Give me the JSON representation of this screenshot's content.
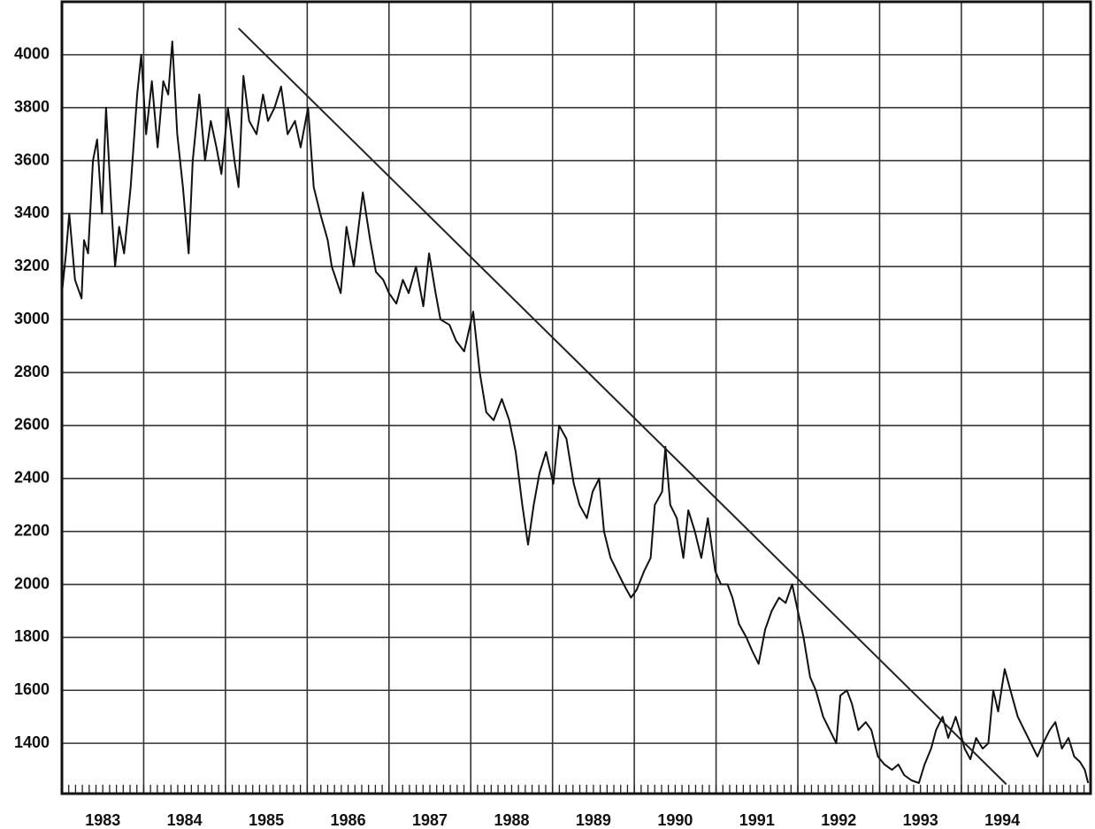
{
  "chart_data": {
    "type": "line",
    "x": [
      1983.0,
      1983.05,
      1983.09,
      1983.16,
      1983.24,
      1983.27,
      1983.32,
      1983.38,
      1983.43,
      1983.49,
      1983.54,
      1983.6,
      1983.65,
      1983.7,
      1983.76,
      1983.84,
      1983.92,
      1983.97,
      1984.03,
      1984.1,
      1984.17,
      1984.24,
      1984.3,
      1984.35,
      1984.41,
      1984.48,
      1984.55,
      1984.6,
      1984.68,
      1984.75,
      1984.82,
      1984.89,
      1984.95,
      1985.03,
      1985.11,
      1985.16,
      1985.22,
      1985.29,
      1985.38,
      1985.46,
      1985.52,
      1985.6,
      1985.68,
      1985.76,
      1985.85,
      1985.92,
      1986.01,
      1986.08,
      1986.16,
      1986.25,
      1986.3,
      1986.41,
      1986.48,
      1986.57,
      1986.68,
      1986.77,
      1986.84,
      1986.93,
      1987.0,
      1987.09,
      1987.17,
      1987.24,
      1987.33,
      1987.42,
      1987.49,
      1987.57,
      1987.63,
      1987.74,
      1987.82,
      1987.92,
      1988.03,
      1988.11,
      1988.19,
      1988.28,
      1988.38,
      1988.47,
      1988.55,
      1988.63,
      1988.7,
      1988.77,
      1988.84,
      1988.92,
      1989.01,
      1989.08,
      1989.17,
      1989.26,
      1989.33,
      1989.42,
      1989.49,
      1989.57,
      1989.63,
      1989.71,
      1989.79,
      1989.87,
      1989.96,
      1990.03,
      1990.12,
      1990.2,
      1990.25,
      1990.34,
      1990.38,
      1990.44,
      1990.52,
      1990.6,
      1990.66,
      1990.74,
      1990.82,
      1990.9,
      1990.99,
      1991.06,
      1991.14,
      1991.2,
      1991.28,
      1991.37,
      1991.44,
      1991.52,
      1991.6,
      1991.68,
      1991.77,
      1991.85,
      1991.93,
      1992.0,
      1992.07,
      1992.15,
      1992.22,
      1992.31,
      1992.39,
      1992.47,
      1992.52,
      1992.6,
      1992.66,
      1992.74,
      1992.83,
      1992.9,
      1992.98,
      1993.06,
      1993.15,
      1993.23,
      1993.3,
      1993.39,
      1993.48,
      1993.55,
      1993.63,
      1993.69,
      1993.77,
      1993.84,
      1993.93,
      1993.98,
      1994.04,
      1994.11,
      1994.18,
      1994.26,
      1994.33,
      1994.39,
      1994.45,
      1994.53,
      1994.6,
      1994.69,
      1994.77,
      1994.85,
      1994.93,
      1995.0,
      1995.08,
      1995.15,
      1995.23,
      1995.31,
      1995.38,
      1995.45,
      1995.51,
      1995.55
    ],
    "values": [
      3100,
      3250,
      3400,
      3150,
      3080,
      3300,
      3250,
      3600,
      3680,
      3400,
      3800,
      3450,
      3200,
      3350,
      3250,
      3500,
      3850,
      4000,
      3700,
      3900,
      3650,
      3900,
      3850,
      4050,
      3700,
      3500,
      3250,
      3600,
      3850,
      3600,
      3750,
      3650,
      3550,
      3800,
      3600,
      3500,
      3920,
      3750,
      3700,
      3850,
      3750,
      3800,
      3880,
      3700,
      3750,
      3650,
      3800,
      3500,
      3400,
      3300,
      3200,
      3100,
      3350,
      3200,
      3480,
      3300,
      3180,
      3150,
      3100,
      3060,
      3150,
      3100,
      3200,
      3050,
      3250,
      3100,
      3000,
      2980,
      2920,
      2880,
      3030,
      2800,
      2650,
      2620,
      2700,
      2620,
      2500,
      2300,
      2150,
      2300,
      2420,
      2500,
      2380,
      2600,
      2550,
      2380,
      2300,
      2250,
      2350,
      2400,
      2200,
      2100,
      2050,
      2000,
      1950,
      1980,
      2050,
      2100,
      2300,
      2350,
      2520,
      2300,
      2250,
      2100,
      2280,
      2200,
      2100,
      2250,
      2050,
      2000,
      2000,
      1950,
      1850,
      1800,
      1750,
      1700,
      1830,
      1900,
      1950,
      1930,
      2000,
      1900,
      1800,
      1650,
      1600,
      1500,
      1450,
      1400,
      1580,
      1600,
      1550,
      1450,
      1480,
      1450,
      1350,
      1320,
      1300,
      1320,
      1280,
      1260,
      1250,
      1320,
      1380,
      1450,
      1500,
      1420,
      1500,
      1450,
      1380,
      1340,
      1420,
      1380,
      1400,
      1600,
      1520,
      1680,
      1600,
      1500,
      1450,
      1400,
      1350,
      1400,
      1450,
      1480,
      1380,
      1420,
      1350,
      1330,
      1300,
      1250
    ],
    "color": "#111111",
    "xlim": [
      1983,
      1995.58
    ],
    "xticks": [
      {
        "value": 1983.5,
        "label": "1983"
      },
      {
        "value": 1984.5,
        "label": "1984"
      },
      {
        "value": 1985.5,
        "label": "1985"
      },
      {
        "value": 1986.5,
        "label": "1986"
      },
      {
        "value": 1987.5,
        "label": "1987"
      },
      {
        "value": 1988.5,
        "label": "1988"
      },
      {
        "value": 1989.5,
        "label": "1989"
      },
      {
        "value": 1990.5,
        "label": "1990"
      },
      {
        "value": 1991.5,
        "label": "1991"
      },
      {
        "value": 1992.5,
        "label": "1992"
      },
      {
        "value": 1993.5,
        "label": "1993"
      },
      {
        "value": 1994.5,
        "label": "1994"
      }
    ],
    "xgrid": [
      1984,
      1985,
      1986,
      1987,
      1988,
      1989,
      1990,
      1991,
      1992,
      1993,
      1994,
      1995
    ],
    "ylim": [
      1210,
      4200
    ],
    "yticks": [
      1400,
      1600,
      1800,
      2000,
      2200,
      2400,
      2600,
      2800,
      3000,
      3200,
      3400,
      3600,
      3800,
      4000
    ],
    "grid": true,
    "trendline": {
      "x": [
        1985.16,
        1994.55
      ],
      "values": [
        4100,
        1245
      ]
    }
  }
}
